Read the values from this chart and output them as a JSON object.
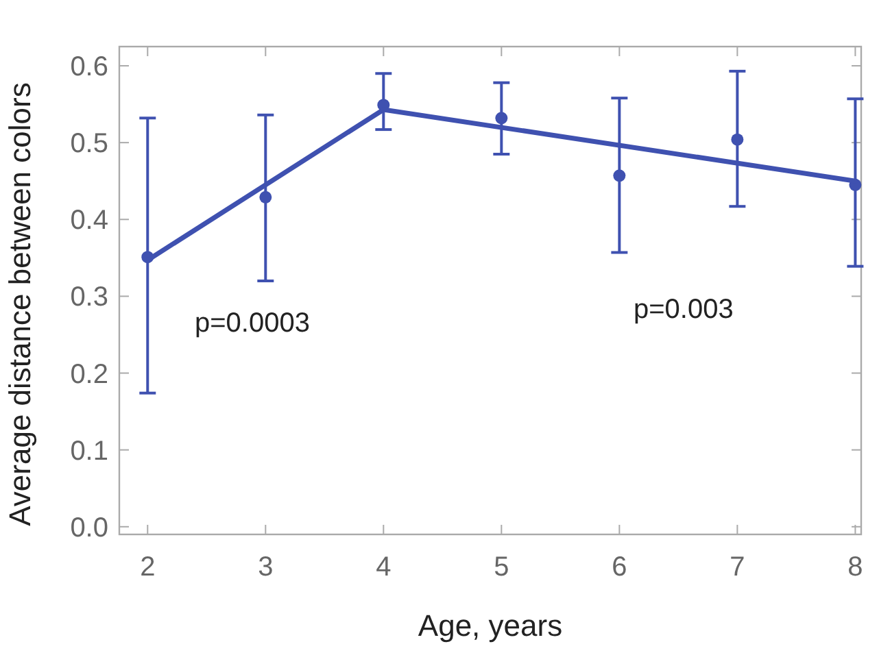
{
  "chart_data": {
    "type": "scatter",
    "xlabel": "Age, years",
    "ylabel": "Average distance between colors",
    "x": [
      2,
      3,
      4,
      5,
      6,
      7,
      8
    ],
    "series": [
      {
        "color": "#3f51b0",
        "marker": "circle",
        "values": [
          0.351,
          0.429,
          0.549,
          0.532,
          0.457,
          0.504,
          0.445
        ],
        "errors": [
          [
            0.174,
            0.532
          ],
          [
            0.32,
            0.536
          ],
          [
            0.517,
            0.59
          ],
          [
            0.485,
            0.578
          ],
          [
            0.357,
            0.558
          ],
          [
            0.417,
            0.593
          ],
          [
            0.339,
            0.557
          ]
        ]
      },
      {
        "type": "line",
        "color": "#3f51b0",
        "line_style": "solid",
        "x": [
          2,
          4,
          8
        ],
        "values": [
          0.347,
          0.543,
          0.45
        ]
      }
    ],
    "annotations": [
      "p=0.0003",
      "p=0.003"
    ],
    "xlim": [
      1.76,
      8.05
    ],
    "xticks": [
      2,
      3,
      4,
      5,
      6,
      7,
      8
    ],
    "ylim": [
      -0.01,
      0.625
    ],
    "yticks": [
      {
        "value": 0,
        "label": "0.0"
      },
      0.1,
      0.2,
      0.3,
      0.4,
      0.5,
      0.6
    ],
    "grid": false
  }
}
